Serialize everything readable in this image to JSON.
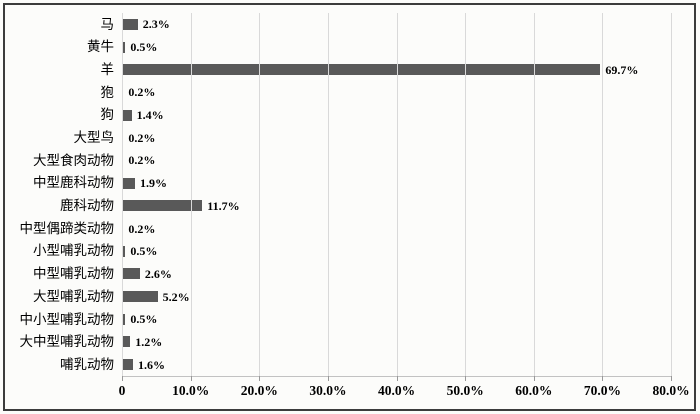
{
  "chart_data": {
    "type": "bar",
    "orientation": "horizontal",
    "title": "",
    "xlabel": "",
    "ylabel": "",
    "legend": false,
    "grid": true,
    "xlim": [
      0,
      80
    ],
    "categories": [
      "马",
      "黄牛",
      "羊",
      "狍",
      "狗",
      "大型鸟",
      "大型食肉动物",
      "中型鹿科动物",
      "鹿科动物",
      "中型偶蹄类动物",
      "小型哺乳动物",
      "中型哺乳动物",
      "大型哺乳动物",
      "中小型哺乳动物",
      "大中型哺乳动物",
      "哺乳动物"
    ],
    "values": [
      2.3,
      0.5,
      69.7,
      0.2,
      1.4,
      0.2,
      0.2,
      1.9,
      11.7,
      0.2,
      0.5,
      2.6,
      5.2,
      0.5,
      1.2,
      1.6
    ],
    "value_labels": [
      "2.3%",
      "0.5%",
      "69.7%",
      "0.2%",
      "1.4%",
      "0.2%",
      "0.2%",
      "1.9%",
      "11.7%",
      "0.2%",
      "0.5%",
      "2.6%",
      "5.2%",
      "0.5%",
      "1.2%",
      "1.6%"
    ],
    "x_ticks": [
      {
        "value": 0,
        "label": "0"
      },
      {
        "value": 10,
        "label": "10.0%"
      },
      {
        "value": 20,
        "label": "20.0%"
      },
      {
        "value": 30,
        "label": "30.0%"
      },
      {
        "value": 40,
        "label": "40.0%"
      },
      {
        "value": 50,
        "label": "50.0%"
      },
      {
        "value": 60,
        "label": "60.0%"
      },
      {
        "value": 70,
        "label": "70.0%"
      },
      {
        "value": 80,
        "label": "80.0%"
      }
    ],
    "colors": {
      "bar": "#595959",
      "gridline": "#d9d9d9",
      "axis": "#c2c2c2",
      "text": "#000000",
      "border": "#3c3c3c",
      "background": "#fcfcfa"
    }
  }
}
